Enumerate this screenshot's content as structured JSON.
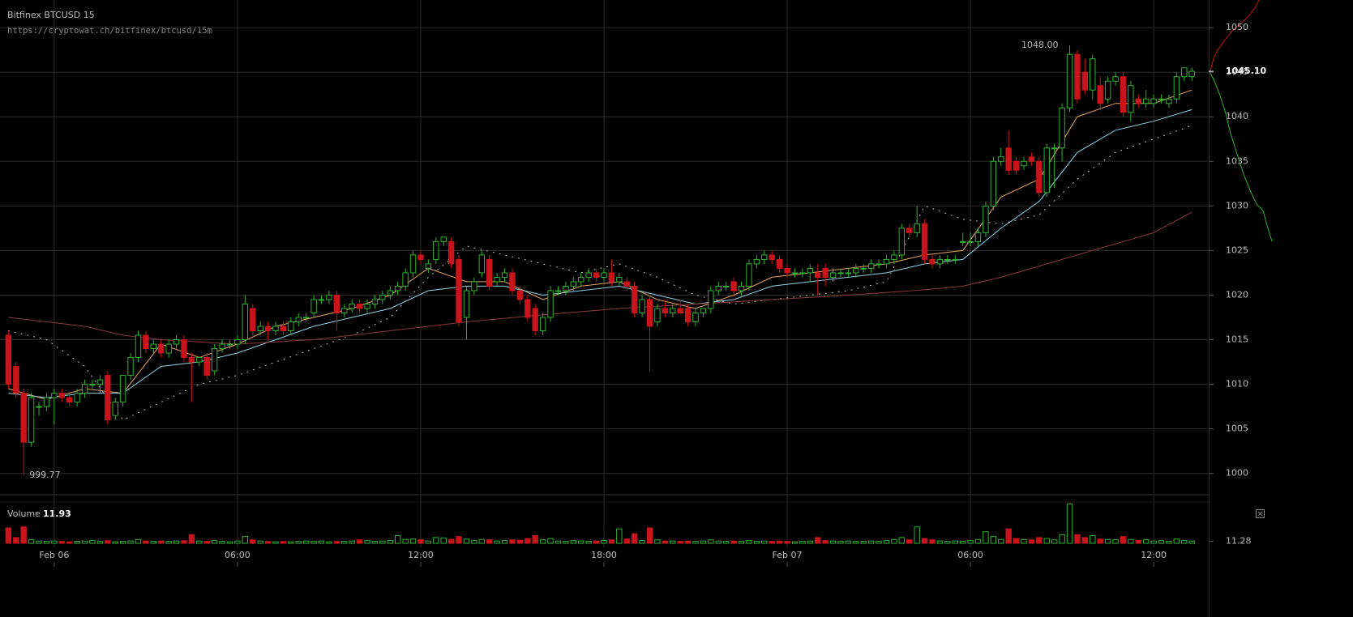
{
  "chart_data": {
    "type": "candlestick",
    "title": "Bitfinex BTCUSD 15",
    "subtitle": "https://cryptowat.ch/bitfinex/btcusd/15m",
    "up_color": "#2fb32f",
    "down_color": "#c8141a",
    "xlim": [
      -1.1,
      157.1
    ],
    "xticks": [
      {
        "value": 6,
        "label": "Feb 06"
      },
      {
        "value": 30,
        "label": "06:00"
      },
      {
        "value": 54,
        "label": "12:00"
      },
      {
        "value": 78,
        "label": "18:00"
      },
      {
        "value": 102,
        "label": "Feb 07"
      },
      {
        "value": 126,
        "label": "06:00"
      },
      {
        "value": 150,
        "label": "12:00"
      }
    ],
    "ylim": [
      997.7,
      1053.1
    ],
    "yticks": [
      1000,
      1005,
      1010,
      1015,
      1020,
      1025,
      1030,
      1035,
      1040,
      1045,
      1050
    ],
    "grid": true,
    "last_price": {
      "value": 1045.1,
      "label": "1045.10"
    },
    "high_label": {
      "value": 1048,
      "label": "1048.00"
    },
    "low_label": 999.77,
    "candles": [
      [
        1015.5,
        1016,
        1009.5,
        1010
      ],
      [
        1012,
        1012.5,
        1008.5,
        1009
      ],
      [
        1009,
        1009.5,
        999.77,
        1003.5
      ],
      [
        1003.5,
        1009,
        1003,
        1008.5
      ],
      [
        1007.5,
        1008,
        1006.5,
        1007.5
      ],
      [
        1007.5,
        1009,
        1007,
        1008.5
      ],
      [
        1008.5,
        1009.5,
        1005.5,
        1009
      ],
      [
        1009,
        1009.5,
        1008,
        1008.5
      ],
      [
        1008.5,
        1009,
        1007.5,
        1008
      ],
      [
        1008,
        1009.5,
        1007.5,
        1009
      ],
      [
        1009,
        1010.5,
        1008.5,
        1010
      ],
      [
        1010,
        1010.5,
        1009.5,
        1010
      ],
      [
        1010,
        1011,
        1009,
        1010.5
      ],
      [
        1011,
        1011.5,
        1005.5,
        1006
      ],
      [
        1006.5,
        1008.5,
        1006,
        1008
      ],
      [
        1008,
        1011,
        1007.5,
        1011
      ],
      [
        1011,
        1013.5,
        1010.5,
        1013
      ],
      [
        1013,
        1016,
        1012.5,
        1015.5
      ],
      [
        1015.5,
        1016,
        1013.5,
        1014
      ],
      [
        1014,
        1015,
        1013.5,
        1014.5
      ],
      [
        1014.5,
        1015,
        1013,
        1013.5
      ],
      [
        1013.5,
        1015,
        1013,
        1014.5
      ],
      [
        1014.5,
        1015.5,
        1014,
        1015
      ],
      [
        1015,
        1015.5,
        1012.5,
        1013
      ],
      [
        1013,
        1013.5,
        1008,
        1012.5
      ],
      [
        1012.5,
        1013,
        1012,
        1013
      ],
      [
        1013,
        1013.5,
        1010.5,
        1011
      ],
      [
        1011.5,
        1014.5,
        1011,
        1014
      ],
      [
        1014,
        1015,
        1013.5,
        1014.5
      ],
      [
        1014.5,
        1015,
        1014,
        1014.5
      ],
      [
        1014.5,
        1015.5,
        1014,
        1015
      ],
      [
        1015,
        1020,
        1014.5,
        1019
      ],
      [
        1018.5,
        1019,
        1015.5,
        1016
      ],
      [
        1016,
        1017,
        1015.5,
        1016.5
      ],
      [
        1016.5,
        1017,
        1015,
        1016
      ],
      [
        1016,
        1017,
        1015.5,
        1016.5
      ],
      [
        1016.5,
        1017,
        1015.5,
        1016
      ],
      [
        1016,
        1017.5,
        1015.5,
        1017
      ],
      [
        1017,
        1018,
        1016.5,
        1017.5
      ],
      [
        1017.5,
        1018,
        1017,
        1017.5
      ],
      [
        1018,
        1020,
        1017.5,
        1019.5
      ],
      [
        1019.5,
        1020,
        1019,
        1019.5
      ],
      [
        1019.5,
        1020.5,
        1019,
        1020
      ],
      [
        1020,
        1020.5,
        1016,
        1018
      ],
      [
        1018,
        1019,
        1017.5,
        1018.5
      ],
      [
        1018.5,
        1019.5,
        1018,
        1019
      ],
      [
        1019,
        1019.5,
        1018,
        1018.5
      ],
      [
        1018.5,
        1019.5,
        1018,
        1019
      ],
      [
        1019,
        1020,
        1018.5,
        1019.5
      ],
      [
        1019.5,
        1020.5,
        1019,
        1020
      ],
      [
        1020,
        1021,
        1019.5,
        1020.5
      ],
      [
        1020.5,
        1021.5,
        1020,
        1021
      ],
      [
        1021,
        1023,
        1020.5,
        1022.5
      ],
      [
        1022.5,
        1025,
        1022,
        1024.5
      ],
      [
        1024.5,
        1025,
        1023.5,
        1024
      ],
      [
        1023,
        1024,
        1022.5,
        1023.5
      ],
      [
        1024,
        1026.5,
        1023.5,
        1026
      ],
      [
        1026,
        1026.5,
        1025.5,
        1026.5
      ],
      [
        1026,
        1026.5,
        1023,
        1023.5
      ],
      [
        1024,
        1024.5,
        1016.5,
        1017
      ],
      [
        1017.5,
        1021,
        1015,
        1020.5
      ],
      [
        1020.5,
        1022,
        1020,
        1021.5
      ],
      [
        1022.5,
        1025,
        1022,
        1024.5
      ],
      [
        1024,
        1024.5,
        1020.5,
        1021
      ],
      [
        1021.5,
        1022.5,
        1021,
        1022
      ],
      [
        1022,
        1023,
        1021.5,
        1022.5
      ],
      [
        1022.5,
        1023,
        1020,
        1020.5
      ],
      [
        1020.5,
        1021,
        1019,
        1019.5
      ],
      [
        1019.5,
        1020,
        1017,
        1017.5
      ],
      [
        1018.5,
        1019,
        1015.5,
        1016
      ],
      [
        1016,
        1018,
        1015.5,
        1017.5
      ],
      [
        1017.5,
        1021,
        1017,
        1020.5
      ],
      [
        1020.5,
        1021,
        1020,
        1020.5
      ],
      [
        1020.5,
        1021.5,
        1020,
        1021
      ],
      [
        1021,
        1022,
        1020.5,
        1021.5
      ],
      [
        1021.5,
        1022.5,
        1021,
        1022
      ],
      [
        1022,
        1023,
        1021.5,
        1022.5
      ],
      [
        1022.5,
        1023,
        1021.5,
        1022
      ],
      [
        1022,
        1023,
        1021.5,
        1022.5
      ],
      [
        1022.5,
        1024,
        1021,
        1021.5
      ],
      [
        1021.5,
        1022.5,
        1021,
        1022
      ],
      [
        1021.5,
        1022,
        1020.5,
        1021
      ],
      [
        1021,
        1021.5,
        1017.5,
        1018
      ],
      [
        1018,
        1020,
        1017.5,
        1019.5
      ],
      [
        1019.5,
        1020,
        1011.5,
        1016.5
      ],
      [
        1017,
        1019,
        1016.5,
        1018.5
      ],
      [
        1018.5,
        1019.5,
        1017.5,
        1018
      ],
      [
        1018,
        1019,
        1017.5,
        1018.5
      ],
      [
        1018.5,
        1019.5,
        1018,
        1018
      ],
      [
        1018.5,
        1019,
        1016.5,
        1017
      ],
      [
        1017,
        1018.5,
        1016.5,
        1018
      ],
      [
        1018,
        1018.5,
        1017.5,
        1018.5
      ],
      [
        1018.5,
        1021,
        1018,
        1020.5
      ],
      [
        1020.5,
        1021.5,
        1020,
        1021
      ],
      [
        1021,
        1021.5,
        1020.5,
        1021
      ],
      [
        1021.5,
        1022,
        1020,
        1020.5
      ],
      [
        1020.5,
        1021.5,
        1020,
        1021
      ],
      [
        1021,
        1024,
        1020.5,
        1023.5
      ],
      [
        1023.5,
        1024.5,
        1023,
        1024
      ],
      [
        1024,
        1025,
        1023.5,
        1024.5
      ],
      [
        1024.5,
        1025,
        1023.5,
        1024
      ],
      [
        1024,
        1024.5,
        1022.5,
        1023
      ],
      [
        1023,
        1023.5,
        1022,
        1022.5
      ],
      [
        1022.5,
        1023,
        1022,
        1022.5
      ],
      [
        1022.5,
        1023,
        1022,
        1022.5
      ],
      [
        1022.5,
        1023.5,
        1021.5,
        1023
      ],
      [
        1022.5,
        1023.5,
        1020,
        1022
      ],
      [
        1023,
        1023.5,
        1021,
        1022
      ],
      [
        1022,
        1023,
        1021.5,
        1022.5
      ],
      [
        1022.5,
        1023,
        1022,
        1022.5
      ],
      [
        1022.5,
        1023,
        1022,
        1022.5
      ],
      [
        1022.5,
        1023.5,
        1022,
        1023
      ],
      [
        1023,
        1023.5,
        1022.5,
        1023
      ],
      [
        1023,
        1024,
        1022.5,
        1023.5
      ],
      [
        1023.5,
        1024,
        1023,
        1023.5
      ],
      [
        1023.5,
        1024.5,
        1023,
        1024
      ],
      [
        1024,
        1025,
        1023.5,
        1024.5
      ],
      [
        1024.5,
        1028,
        1024,
        1027.5
      ],
      [
        1027.5,
        1028,
        1026.5,
        1027
      ],
      [
        1027,
        1030,
        1026.5,
        1028
      ],
      [
        1028,
        1028.5,
        1023.5,
        1024
      ],
      [
        1024,
        1024.5,
        1023,
        1023.5
      ],
      [
        1023.5,
        1024.5,
        1023,
        1024
      ],
      [
        1024,
        1024.5,
        1023.5,
        1024
      ],
      [
        1024,
        1024.5,
        1023.5,
        1024
      ],
      [
        1026,
        1027,
        1025.5,
        1026
      ],
      [
        1026,
        1027,
        1025.5,
        1026
      ],
      [
        1026,
        1027.5,
        1025.5,
        1027
      ],
      [
        1027,
        1030.5,
        1026.5,
        1030
      ],
      [
        1030,
        1035.5,
        1029.5,
        1035
      ],
      [
        1035,
        1036.5,
        1034.5,
        1035.5
      ],
      [
        1036.5,
        1038.5,
        1033.5,
        1034
      ],
      [
        1035,
        1035.5,
        1033.5,
        1034
      ],
      [
        1034.5,
        1035.5,
        1034,
        1035
      ],
      [
        1035.5,
        1036,
        1034.5,
        1035
      ],
      [
        1035,
        1035.5,
        1031,
        1031.5
      ],
      [
        1031.5,
        1037,
        1031,
        1036.5
      ],
      [
        1036.5,
        1037,
        1032,
        1036.5
      ],
      [
        1036.5,
        1041.5,
        1035,
        1041
      ],
      [
        1041,
        1048,
        1040.5,
        1047
      ],
      [
        1047,
        1047.5,
        1041.5,
        1042
      ],
      [
        1045,
        1046.5,
        1042.5,
        1043
      ],
      [
        1043,
        1047,
        1042,
        1046.5
      ],
      [
        1043.5,
        1044.5,
        1041,
        1041.5
      ],
      [
        1042,
        1044.5,
        1041.5,
        1044
      ],
      [
        1044,
        1045,
        1043.5,
        1044.5
      ],
      [
        1044.5,
        1045,
        1040,
        1040.5
      ],
      [
        1040.5,
        1044,
        1039.5,
        1043.5
      ],
      [
        1042,
        1042.5,
        1041,
        1041.5
      ],
      [
        1041.5,
        1043,
        1041,
        1042
      ],
      [
        1041.5,
        1042.5,
        1041,
        1042
      ],
      [
        1042,
        1042.5,
        1041.5,
        1042
      ],
      [
        1041.5,
        1042.5,
        1041,
        1042
      ],
      [
        1042,
        1045,
        1041.5,
        1044.5
      ],
      [
        1044.5,
        1045.5,
        1044,
        1045.5
      ],
      [
        1044.5,
        1045.5,
        1044,
        1045.1
      ]
    ],
    "series": [
      {
        "color": "#e8a25e",
        "style": "solid",
        "x": [
          0,
          5,
          10,
          15,
          20,
          25,
          30,
          35,
          40,
          45,
          50,
          55,
          60,
          65,
          70,
          75,
          80,
          85,
          90,
          95,
          100,
          105,
          110,
          115,
          120,
          125,
          130,
          135,
          140,
          145,
          150,
          155
        ],
        "values": [
          1009.5,
          1008.3,
          1009.5,
          1009,
          1014.5,
          1013,
          1014.5,
          1016.5,
          1017.5,
          1018.5,
          1020,
          1023,
          1021.5,
          1021.5,
          1019.5,
          1021,
          1021.5,
          1019.5,
          1018.5,
          1020,
          1022,
          1022.5,
          1023,
          1023.5,
          1024.5,
          1025,
          1031,
          1033,
          1040,
          1041.5,
          1041.5,
          1043
        ]
      },
      {
        "color": "#8fd3e6",
        "style": "solid",
        "x": [
          0,
          5,
          10,
          15,
          20,
          25,
          30,
          35,
          40,
          45,
          50,
          55,
          60,
          65,
          70,
          75,
          80,
          85,
          90,
          95,
          100,
          105,
          110,
          115,
          120,
          125,
          130,
          135,
          140,
          145,
          150,
          155
        ],
        "values": [
          1009,
          1008.5,
          1009,
          1009,
          1012,
          1012.5,
          1013.5,
          1015,
          1016.5,
          1017.5,
          1018.5,
          1020.5,
          1021,
          1021,
          1020,
          1020.5,
          1021,
          1020,
          1019,
          1019.5,
          1021,
          1021.5,
          1022,
          1022.5,
          1023.5,
          1024,
          1027.5,
          1030.5,
          1036,
          1038.5,
          1039.5,
          1040.8
        ]
      },
      {
        "color": "#cccccc",
        "style": "dotted",
        "x": [
          0,
          5,
          10,
          15,
          20,
          25,
          30,
          35,
          40,
          45,
          50,
          55,
          60,
          65,
          70,
          75,
          80,
          85,
          90,
          95,
          100,
          105,
          110,
          115,
          120,
          125,
          130,
          135,
          140,
          145,
          150,
          155
        ],
        "values": [
          1016,
          1015,
          1012,
          1006,
          1008,
          1010,
          1011,
          1012.5,
          1014,
          1015.5,
          1017.5,
          1022,
          1025.5,
          1024.5,
          1023.5,
          1022.5,
          1023.5,
          1022,
          1020,
          1019,
          1019.5,
          1020,
          1020.5,
          1021.5,
          1030,
          1028.5,
          1028,
          1029,
          1033,
          1036,
          1037.5,
          1039
        ]
      },
      {
        "color": "#8a3a3e",
        "style": "solid",
        "x": [
          0,
          10,
          15,
          20,
          30,
          40,
          50,
          60,
          70,
          80,
          90,
          100,
          110,
          120,
          125,
          130,
          140,
          150,
          155
        ],
        "values": [
          1017.5,
          1016.5,
          1015.5,
          1015,
          1014.5,
          1015,
          1016,
          1017,
          1017.8,
          1018.5,
          1019,
          1019.5,
          1020,
          1020.6,
          1021,
          1022,
          1024.5,
          1027,
          1029.3
        ]
      }
    ],
    "volume_label": "Volume",
    "vol_ylim": [
      0,
      210
    ],
    "vol_yticks": [
      11.28
    ],
    "volumes": [
      80,
      30,
      85,
      18,
      12,
      10,
      12,
      10,
      8,
      10,
      12,
      15,
      10,
      14,
      8,
      10,
      12,
      20,
      12,
      10,
      12,
      10,
      12,
      14,
      45,
      12,
      10,
      14,
      10,
      8,
      12,
      35,
      18,
      12,
      10,
      8,
      10,
      8,
      10,
      12,
      10,
      12,
      8,
      10,
      10,
      12,
      18,
      14,
      10,
      12,
      14,
      40,
      20,
      22,
      18,
      12,
      30,
      28,
      20,
      35,
      22,
      14,
      20,
      18,
      12,
      14,
      18,
      16,
      25,
      40,
      18,
      25,
      12,
      10,
      14,
      12,
      10,
      12,
      15,
      18,
      75,
      22,
      50,
      14,
      80,
      18,
      12,
      12,
      10,
      12,
      10,
      12,
      18,
      12,
      10,
      12,
      10,
      14,
      10,
      12,
      10,
      12,
      10,
      8,
      10,
      12,
      30,
      14,
      12,
      10,
      12,
      10,
      10,
      12,
      10,
      14,
      20,
      30,
      18,
      85,
      25,
      18,
      12,
      10,
      12,
      10,
      14,
      20,
      60,
      35,
      20,
      75,
      25,
      20,
      18,
      30,
      25,
      18,
      45,
      205,
      45,
      30,
      40,
      22,
      20,
      18,
      35,
      20,
      15,
      18,
      12,
      14,
      10,
      22,
      15,
      11.93
    ]
  }
}
